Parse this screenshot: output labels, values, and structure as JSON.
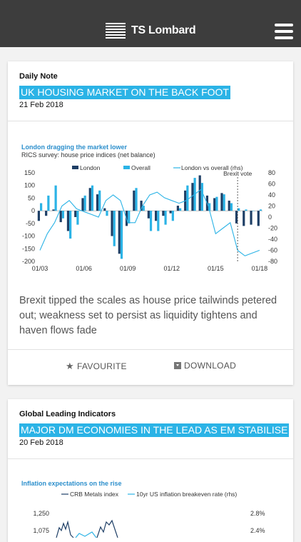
{
  "app": {
    "brand": "TS Lombard"
  },
  "cards": [
    {
      "category": "Daily Note",
      "headline": "UK HOUSING MARKET ON THE BACK FOOT",
      "date": "21 Feb 2018",
      "summary": "Brexit tipped the scales as house price tailwinds petered out; weakness set to persist as liquidity tightens and haven flows fade",
      "actions": {
        "favourite": "FAVOURITE",
        "download": "DOWNLOAD"
      },
      "chart": {
        "title": "London dragging the market lower",
        "subtitle": "RICS survey: house price indices (net balance)",
        "legend": [
          "London",
          "Overall",
          "London vs overall (rhs)"
        ],
        "annotation": "Brexit vote"
      }
    },
    {
      "category": "Global Leading Indicators",
      "headline": "MAJOR DM ECONOMIES IN THE LEAD AS EM STABILISE",
      "date": "20 Feb 2018",
      "chart": {
        "title": "Inflation expectations on the rise",
        "legend": [
          "CRB Metals index",
          "10yr US inflation breakeven rate (rhs)"
        ]
      }
    }
  ],
  "chart_data": [
    {
      "type": "bar",
      "title": "London dragging the market lower",
      "subtitle": "RICS survey: house price indices (net balance)",
      "x_ticks": [
        "01/03",
        "01/06",
        "01/09",
        "01/12",
        "01/15",
        "01/18"
      ],
      "y_ticks_left": [
        "150",
        "100",
        "50",
        "0",
        "-50",
        "-100",
        "-150",
        "-200"
      ],
      "y_ticks_right": [
        "80",
        "60",
        "40",
        "20",
        "0",
        "-20",
        "-40",
        "-60",
        "-80"
      ],
      "ylim": [
        -200,
        150
      ],
      "ylim_rhs": [
        -80,
        80
      ],
      "x_range": [
        2003.0,
        2018.2
      ],
      "annotation": {
        "label": "Brexit vote",
        "x": 2016.5
      },
      "series": [
        {
          "name": "London",
          "kind": "bar",
          "color": "#1e3f66",
          "x": [
            2003,
            2003.5,
            2004,
            2004.5,
            2005,
            2005.5,
            2006,
            2006.5,
            2007,
            2007.5,
            2008,
            2008.5,
            2009,
            2009.5,
            2010,
            2010.5,
            2011,
            2011.5,
            2012,
            2012.5,
            2013,
            2013.5,
            2014,
            2014.5,
            2015,
            2015.5,
            2016,
            2016.5,
            2017,
            2017.5,
            2018
          ],
          "values": [
            -40,
            -20,
            5,
            -45,
            -80,
            -25,
            50,
            90,
            65,
            10,
            -100,
            -170,
            -60,
            80,
            40,
            -30,
            -40,
            -20,
            -10,
            20,
            80,
            110,
            140,
            60,
            50,
            70,
            40,
            -50,
            -60,
            -55,
            -60
          ]
        },
        {
          "name": "Overall",
          "kind": "bar",
          "color": "#2bb3e6",
          "x": [
            2003,
            2003.5,
            2004,
            2004.5,
            2005,
            2005.5,
            2006,
            2006.5,
            2007,
            2007.5,
            2008,
            2008.5,
            2009,
            2009.5,
            2010,
            2010.5,
            2011,
            2011.5,
            2012,
            2012.5,
            2013,
            2013.5,
            2014,
            2014.5,
            2015,
            2015.5,
            2016,
            2016.5,
            2017,
            2017.5,
            2018
          ],
          "values": [
            30,
            60,
            100,
            -30,
            -110,
            -55,
            60,
            100,
            80,
            -20,
            -140,
            -190,
            -50,
            90,
            20,
            -80,
            -80,
            -55,
            -40,
            10,
            100,
            130,
            110,
            30,
            55,
            65,
            30,
            10,
            5,
            0,
            5
          ]
        },
        {
          "name": "London vs overall (rhs)",
          "kind": "line",
          "color": "#2bb3e6",
          "x": [
            2003,
            2003.5,
            2004,
            2004.5,
            2005,
            2005.5,
            2006,
            2006.5,
            2007,
            2007.5,
            2008,
            2008.5,
            2009,
            2009.5,
            2010,
            2010.5,
            2011,
            2011.5,
            2012,
            2012.5,
            2013,
            2013.5,
            2014,
            2014.5,
            2015,
            2015.5,
            2016,
            2016.5,
            2017,
            2017.5,
            2018
          ],
          "values": [
            -60,
            -30,
            -10,
            20,
            30,
            15,
            10,
            5,
            0,
            30,
            40,
            30,
            -10,
            -10,
            20,
            40,
            45,
            35,
            30,
            25,
            30,
            40,
            50,
            20,
            -30,
            -20,
            -10,
            -60,
            -70,
            -65,
            -60
          ]
        }
      ]
    },
    {
      "type": "line",
      "title": "Inflation expectations on the rise",
      "y_ticks_left": [
        "1,250",
        "1,075"
      ],
      "y_ticks_right": [
        "2.8%",
        "2.4%"
      ],
      "series": [
        {
          "name": "CRB Metals index",
          "color": "#1e3f66"
        },
        {
          "name": "10yr US inflation breakeven rate (rhs)",
          "color": "#2bb3e6"
        }
      ]
    }
  ]
}
